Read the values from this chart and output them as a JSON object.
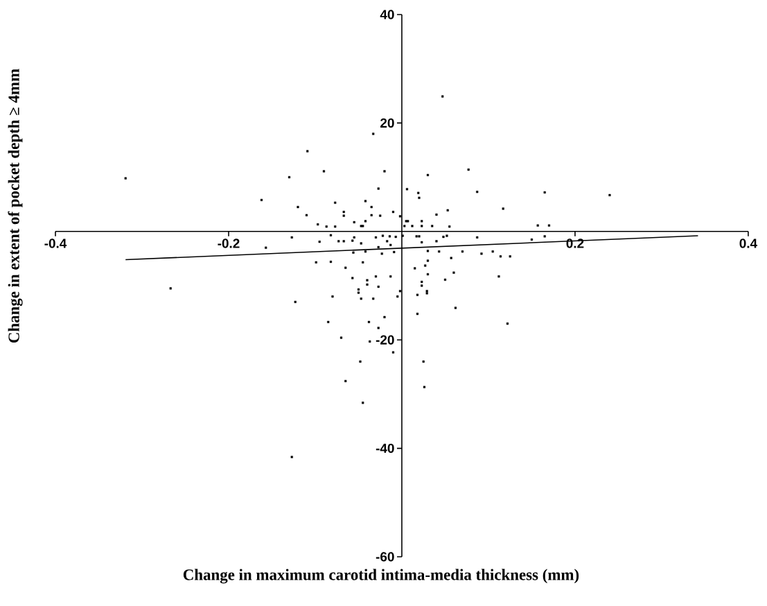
{
  "chart_data": {
    "type": "scatter",
    "xlabel": "Change in maximum carotid intima-media thickness (mm)",
    "ylabel": "Change in extent of pocket depth ≥ 4mm",
    "xlim": [
      -0.4,
      0.4
    ],
    "ylim": [
      -60,
      40
    ],
    "xticks": [
      -0.4,
      -0.2,
      0.2,
      0.4
    ],
    "yticks": [
      -60,
      -40,
      -20,
      20,
      40
    ],
    "marker": "square",
    "grid": false,
    "series": [
      {
        "color": "#000000",
        "x": [
          -0.319,
          -0.162,
          -0.13,
          -0.109,
          -0.12,
          -0.11,
          -0.09,
          -0.097,
          -0.087,
          -0.077,
          -0.077,
          -0.067,
          -0.067,
          -0.055,
          -0.047,
          -0.045,
          -0.042,
          -0.042,
          -0.035,
          -0.035,
          -0.033,
          -0.027,
          -0.025,
          -0.02,
          -0.01,
          -0.002,
          -0.127,
          -0.157,
          -0.095,
          -0.082,
          -0.073,
          -0.067,
          -0.057,
          -0.055,
          -0.047,
          -0.03,
          -0.022,
          -0.014,
          -0.007,
          -0.017,
          -0.013,
          -0.027,
          -0.056,
          -0.042,
          -0.023,
          -0.009,
          -0.099,
          -0.082,
          -0.065,
          -0.045,
          -0.057,
          -0.04,
          -0.04,
          -0.03,
          -0.013,
          -0.027,
          -0.05,
          -0.05,
          -0.047,
          -0.033,
          -0.08,
          -0.005,
          -0.002,
          -0.123,
          -0.267,
          -0.085,
          -0.038,
          -0.02,
          -0.027,
          -0.07,
          -0.037,
          -0.01,
          -0.048,
          -0.065,
          -0.045,
          -0.127,
          0.026,
          0.047,
          0.03,
          0.077,
          0.006,
          0.019,
          0.02,
          0.087,
          0.165,
          0.24,
          0.117,
          0.053,
          0.04,
          0.005,
          0.007,
          0.023,
          0.003,
          0.012,
          0.023,
          0.035,
          0.055,
          0.157,
          0.17,
          0.001,
          0.017,
          0.02,
          0.023,
          0.04,
          0.048,
          0.052,
          0.087,
          0.15,
          0.165,
          0.03,
          0.043,
          0.07,
          0.092,
          0.105,
          0.114,
          0.125,
          0.057,
          0.03,
          0.027,
          0.015,
          0.06,
          0.03,
          0.112,
          0.05,
          0.023,
          0.023,
          0.029,
          0.029,
          0.018,
          0.062,
          0.018,
          0.122,
          0.025
        ],
        "values": [
          9.8,
          5.8,
          10.0,
          14.8,
          4.5,
          3.0,
          11.1,
          1.3,
          0.9,
          5.3,
          0.9,
          3.6,
          2.9,
          1.7,
          1.0,
          1.0,
          5.6,
          1.9,
          4.5,
          3.0,
          18.0,
          7.9,
          2.9,
          11.1,
          3.6,
          2.8,
          -1.1,
          -3.0,
          -1.9,
          -0.7,
          -1.8,
          -1.8,
          -1.7,
          -1.1,
          -2.2,
          -1.1,
          -0.8,
          -0.9,
          -1.0,
          -1.8,
          -2.5,
          -2.9,
          -3.9,
          -3.7,
          -4.1,
          -3.8,
          -5.7,
          -5.6,
          -6.7,
          -5.7,
          -8.6,
          -9.0,
          -9.8,
          -8.3,
          -8.3,
          -10.2,
          -10.7,
          -11.3,
          -12.4,
          -12.4,
          -12.0,
          -12.0,
          -11.0,
          -13.0,
          -10.5,
          -16.7,
          -16.7,
          -15.8,
          -17.8,
          -19.6,
          -20.3,
          -22.3,
          -24.0,
          -27.6,
          -31.6,
          -41.6,
          -28.7,
          24.9,
          10.4,
          11.4,
          7.8,
          7.1,
          6.2,
          7.3,
          7.2,
          6.7,
          4.2,
          3.9,
          3.1,
          1.9,
          1.9,
          1.9,
          1.0,
          1.0,
          1.0,
          1.0,
          0.9,
          1.1,
          1.1,
          -0.8,
          -0.9,
          -0.9,
          -2.0,
          -1.8,
          -1.0,
          -0.8,
          -1.1,
          -1.5,
          -0.9,
          -3.6,
          -3.7,
          -3.7,
          -4.1,
          -3.7,
          -4.6,
          -4.6,
          -4.9,
          -5.4,
          -6.3,
          -6.8,
          -7.6,
          -7.9,
          -8.3,
          -8.9,
          -9.3,
          -10.0,
          -11.0,
          -11.4,
          -11.7,
          -14.1,
          -15.2,
          -17.0,
          -24.0
        ]
      },
      {
        "type": "line",
        "color": "#000000",
        "marker": "none",
        "line_style": "solid",
        "x": [
          -0.319,
          0.342
        ],
        "values": [
          -5.2,
          -0.8
        ]
      }
    ]
  }
}
